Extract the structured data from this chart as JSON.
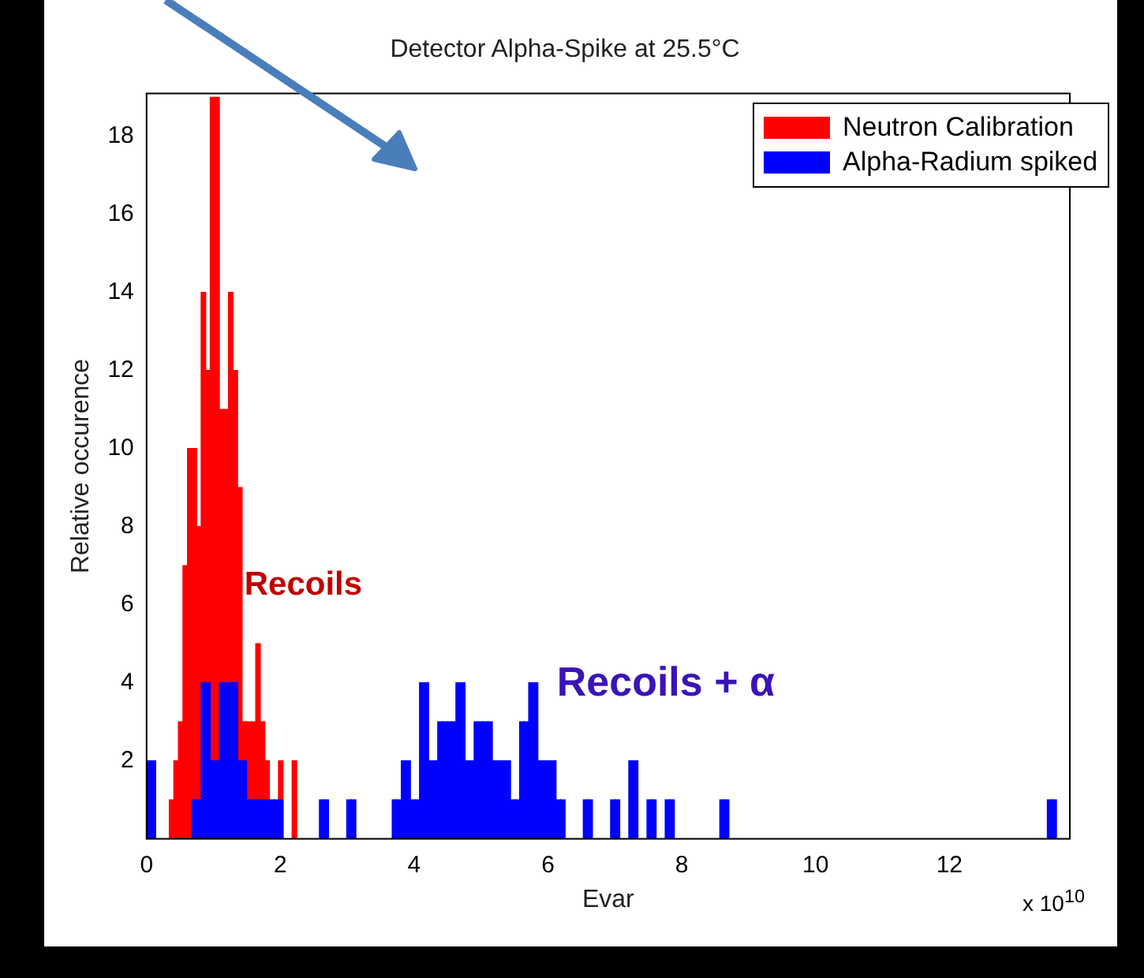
{
  "chart_data": {
    "type": "histogram",
    "title": "Detector Alpha-Spike at 25.5°C",
    "xlabel": "Evar",
    "ylabel": "Relative occurence",
    "xlim": [
      0,
      13.8
    ],
    "xticks": [
      0,
      2,
      4,
      6,
      8,
      10,
      12
    ],
    "ylim": [
      0,
      19.1
    ],
    "yticks": [
      2,
      4,
      6,
      8,
      10,
      12,
      14,
      16,
      18
    ],
    "grid": false,
    "legend": "top right",
    "bins": [
      0,
      0.068,
      0.136,
      0.204,
      0.272,
      0.34,
      0.408,
      0.476,
      0.544,
      0.612,
      0.68,
      0.748,
      0.816,
      0.884,
      0.952,
      1.02,
      1.088,
      1.156,
      1.224,
      1.292,
      1.36,
      1.428,
      1.496,
      1.564,
      1.632,
      1.7,
      1.768,
      1.836,
      1.904,
      1.972,
      2.04,
      2.108,
      2.176,
      2.244,
      2.312,
      2.38,
      2.448,
      2.516,
      2.584,
      2.652,
      2.72,
      2.788,
      2.856,
      2.924,
      2.992,
      3.06,
      3.128,
      3.196,
      3.264,
      3.332,
      3.4,
      3.468,
      3.536,
      3.604,
      3.672,
      3.74,
      3.808,
      3.876,
      3.944,
      4.012,
      4.08,
      4.148,
      4.216,
      4.284,
      4.352,
      4.42,
      4.488,
      4.556,
      4.624,
      4.692,
      4.76,
      4.828,
      4.896,
      4.964,
      5.032,
      5.1,
      5.168,
      5.236,
      5.304,
      5.372,
      5.44,
      5.508,
      5.576,
      5.644,
      5.712,
      5.78,
      5.848,
      5.916,
      5.984,
      6.052,
      6.12,
      6.188,
      6.256,
      6.324,
      6.392,
      6.46,
      6.528,
      6.596,
      6.664,
      6.732,
      6.8,
      6.868,
      6.936,
      7.004,
      7.072,
      7.14,
      7.208,
      7.276,
      7.344,
      7.412,
      7.48,
      7.548,
      7.616,
      7.684,
      7.752,
      7.82,
      7.888,
      7.956,
      8.024,
      8.092,
      8.16,
      8.228,
      8.296,
      8.364,
      8.432,
      8.5,
      8.568,
      8.636,
      8.704,
      8.772,
      8.84,
      8.908,
      8.976,
      9.044,
      9.112,
      9.18,
      9.248,
      9.316,
      9.384,
      9.452,
      9.52,
      9.588,
      9.656,
      9.724,
      9.792,
      9.86,
      9.928,
      9.996,
      10.064,
      10.132,
      10.2,
      10.268,
      10.336,
      10.404,
      10.472,
      10.54,
      10.608,
      10.676,
      10.744,
      10.812,
      10.88,
      10.948,
      11.016,
      11.084,
      11.152,
      11.22,
      11.288,
      11.356,
      11.424,
      11.492,
      11.56,
      11.628,
      11.696,
      11.764,
      11.832,
      11.9,
      11.968,
      12.036,
      12.104,
      12.172,
      12.24,
      12.308,
      12.376,
      12.444,
      12.512,
      12.58,
      12.648,
      12.716,
      12.784,
      12.852,
      12.92,
      12.988,
      13.056,
      13.124,
      13.192,
      13.26,
      13.328,
      13.396,
      13.464,
      13.532,
      13.6
    ],
    "series": [
      {
        "name": "Neutron Calibration",
        "color": "#ff0000",
        "values": [
          0,
          0,
          0,
          0,
          0,
          1,
          2,
          3,
          7,
          10,
          10,
          8,
          14,
          12,
          19,
          19,
          11,
          11,
          14,
          12,
          9,
          3,
          3,
          3,
          5,
          3,
          2,
          0,
          0,
          2,
          0,
          0,
          2,
          0,
          0,
          0,
          0,
          0,
          0,
          0,
          0,
          0,
          0,
          0,
          0,
          0,
          0,
          0,
          0,
          0,
          0,
          0,
          0,
          0,
          0,
          0,
          0,
          0,
          0,
          0,
          0,
          0,
          0,
          0,
          0,
          0,
          0,
          0,
          0,
          0,
          0,
          0,
          0,
          0,
          0,
          0,
          0,
          0,
          0,
          0,
          0,
          0,
          0,
          0,
          0,
          0,
          0,
          0,
          0,
          0,
          0,
          0,
          0,
          0,
          0,
          0,
          0,
          0,
          0,
          0,
          0,
          0,
          0,
          0,
          0,
          0,
          0,
          0,
          0,
          0,
          0,
          0,
          0,
          0,
          0,
          0,
          0,
          0,
          0,
          0,
          0,
          0,
          0,
          0,
          0,
          0,
          0,
          0,
          0,
          0,
          0,
          0,
          0,
          0,
          0,
          0,
          0,
          0,
          0,
          0,
          0,
          0,
          0,
          0,
          0,
          0,
          0,
          0,
          0,
          0,
          0,
          0,
          0,
          0,
          0,
          0,
          0,
          0,
          0,
          0,
          0,
          0,
          0,
          0,
          0,
          0,
          0,
          0,
          0,
          0,
          0,
          0,
          0,
          0,
          0,
          0,
          0,
          0,
          0,
          0,
          0,
          0,
          0,
          0,
          0,
          0,
          0,
          0,
          0,
          0,
          0,
          0,
          0,
          0,
          0,
          0,
          0,
          0,
          0,
          0
        ]
      },
      {
        "name": "Alpha-Radium spiked",
        "color": "#0000ff",
        "values": [
          2,
          2,
          0,
          0,
          0,
          0,
          0,
          0,
          0,
          0,
          1,
          1,
          4,
          4,
          2,
          2,
          4,
          4,
          4,
          4,
          2,
          2,
          1,
          1,
          1,
          1,
          1,
          1,
          1,
          1,
          0,
          0,
          0,
          0,
          0,
          0,
          0,
          0,
          1,
          1,
          0,
          0,
          0,
          0,
          1,
          1,
          0,
          0,
          0,
          0,
          0,
          0,
          0,
          0,
          1,
          1,
          2,
          2,
          1,
          1,
          4,
          4,
          2,
          2,
          3,
          3,
          3,
          3,
          4,
          4,
          2,
          2,
          3,
          3,
          3,
          3,
          2,
          2,
          2,
          2,
          1,
          1,
          3,
          3,
          4,
          4,
          2,
          2,
          2,
          2,
          1,
          1,
          0,
          0,
          0,
          0,
          1,
          1,
          0,
          0,
          0,
          0,
          1,
          1,
          0,
          0,
          2,
          2,
          0,
          0,
          1,
          1,
          0,
          0,
          1,
          1,
          0,
          0,
          0,
          0,
          0,
          0,
          0,
          0,
          0,
          0,
          1,
          1,
          0,
          0,
          0,
          0,
          0,
          0,
          0,
          0,
          0,
          0,
          0,
          0,
          0,
          0,
          0,
          0,
          0,
          0,
          0,
          0,
          0,
          0,
          0,
          0,
          0,
          0,
          0,
          0,
          0,
          0,
          0,
          0,
          0,
          0,
          0,
          0,
          0,
          0,
          0,
          0,
          0,
          0,
          0,
          0,
          0,
          0,
          0,
          0,
          0,
          0,
          0,
          0,
          0,
          0,
          0,
          0,
          0,
          0,
          0,
          0,
          0,
          0,
          0,
          0,
          0,
          0,
          0,
          0,
          0,
          0,
          1,
          1
        ]
      }
    ],
    "annotations": [
      "Recoils",
      "Recoils + α",
      "x 10$^{10}$"
    ]
  }
}
